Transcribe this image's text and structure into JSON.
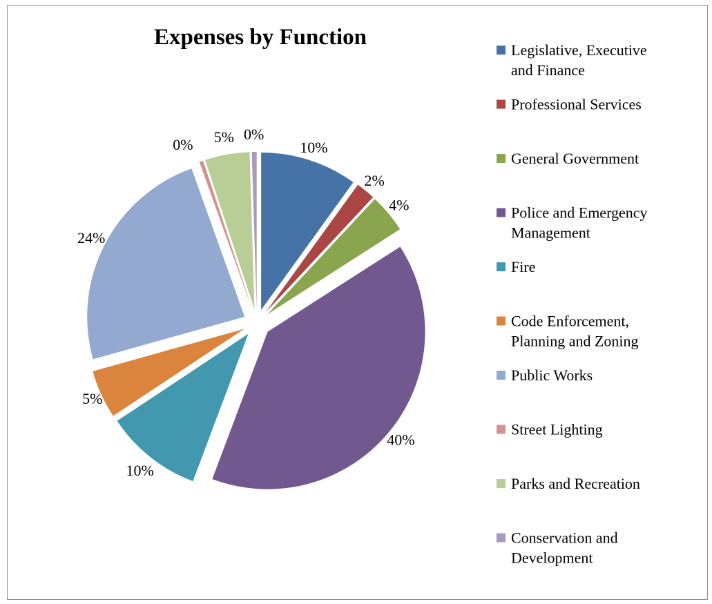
{
  "chart_data": {
    "type": "pie",
    "title": "Expenses by Function",
    "legend_position": "right",
    "exploded": true,
    "slices": [
      {
        "name": "Legislative, Executive and Finance",
        "legend_lines": [
          "Legislative, Executive",
          "and Finance"
        ],
        "value": 10,
        "label": "10%",
        "color": "#4572A7"
      },
      {
        "name": "Professional Services",
        "legend_lines": [
          "Professional Services"
        ],
        "value": 2,
        "label": "2%",
        "color": "#AA4643"
      },
      {
        "name": "General Government",
        "legend_lines": [
          "General Government"
        ],
        "value": 4,
        "label": "4%",
        "color": "#89A54E"
      },
      {
        "name": "Police and Emergency Management",
        "legend_lines": [
          "Police and Emergency",
          "Management"
        ],
        "value": 40,
        "label": "40%",
        "color": "#71588F"
      },
      {
        "name": "Fire",
        "legend_lines": [
          "Fire"
        ],
        "value": 10,
        "label": "10%",
        "color": "#4198AF"
      },
      {
        "name": "Code Enforcement, Planning and Zoning",
        "legend_lines": [
          "Code Enforcement,",
          "Planning and Zoning"
        ],
        "value": 5,
        "label": "5%",
        "color": "#DB843D"
      },
      {
        "name": "Public Works",
        "legend_lines": [
          "Public Works"
        ],
        "value": 24,
        "label": "24%",
        "color": "#93A9CF"
      },
      {
        "name": "Street Lighting",
        "legend_lines": [
          "Street Lighting"
        ],
        "value": 0.4,
        "label": "0%",
        "color": "#D19392"
      },
      {
        "name": "Parks and Recreation",
        "legend_lines": [
          "Parks and Recreation"
        ],
        "value": 4.6,
        "label": "5%",
        "color": "#B9CD96"
      },
      {
        "name": "Conservation and Development",
        "legend_lines": [
          "Conservation and",
          "Development"
        ],
        "value": 0.5,
        "label": "0%",
        "color": "#A99BBD"
      }
    ]
  }
}
